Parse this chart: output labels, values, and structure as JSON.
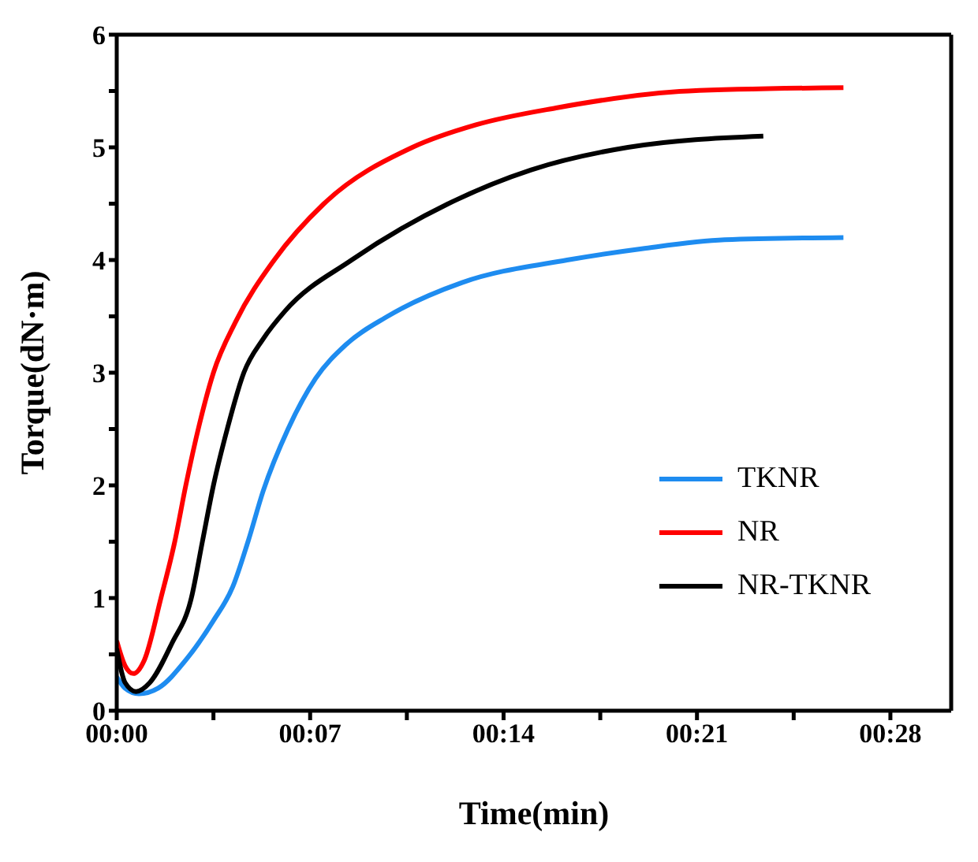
{
  "chart_data": {
    "type": "line",
    "xlabel": "Time(min)",
    "ylabel": "Torque(dN·m)",
    "xlim": [
      0,
      30.2
    ],
    "xticks": [
      {
        "value": 0,
        "label": "00:00"
      },
      {
        "value": 3.5,
        "label": null
      },
      {
        "value": 7,
        "label": "00:07"
      },
      {
        "value": 10.5,
        "label": null
      },
      {
        "value": 14,
        "label": "00:14"
      },
      {
        "value": 17.5,
        "label": null
      },
      {
        "value": 21,
        "label": "00:21"
      },
      {
        "value": 24.5,
        "label": null
      },
      {
        "value": 28,
        "label": "00:28"
      }
    ],
    "ylim": [
      0,
      6
    ],
    "yticks": [
      0,
      {
        "value": 0.5,
        "label": null
      },
      1,
      {
        "value": 1.5,
        "label": null
      },
      2,
      {
        "value": 2.5,
        "label": null
      },
      3,
      {
        "value": 3.5,
        "label": null
      },
      4,
      {
        "value": 4.5,
        "label": null
      },
      5,
      {
        "value": 5.5,
        "label": null
      },
      6
    ],
    "legend": "bottom right",
    "marker": "none",
    "line_style": "solid",
    "series": [
      {
        "name": "TKNR",
        "color": "#1e8cf0",
        "x": [
          0,
          0.3,
          0.8,
          1.5,
          2.5,
          3.5,
          4.2,
          4.75,
          5.3,
          6.2,
          7.2,
          8.3,
          9.8,
          12.5,
          16.3,
          19,
          22,
          26.3
        ],
        "values": [
          0.3,
          0.2,
          0.15,
          0.2,
          0.45,
          0.8,
          1.1,
          1.5,
          1.95,
          2.5,
          2.95,
          3.25,
          3.5,
          3.8,
          4.0,
          4.1,
          4.18,
          4.2
        ]
      },
      {
        "name": "NR",
        "color": "#ff0000",
        "x": [
          0,
          0.3,
          0.6,
          1.0,
          1.6,
          2.1,
          2.5,
          3.0,
          3.5,
          4.3,
          5.7,
          7.5,
          10.7,
          13,
          15.9,
          20.7,
          26.3
        ],
        "values": [
          0.62,
          0.4,
          0.33,
          0.45,
          1.0,
          1.5,
          2.0,
          2.55,
          3.0,
          3.45,
          4.0,
          4.5,
          5.0,
          5.2,
          5.35,
          5.5,
          5.53
        ]
      },
      {
        "name": "NR-TKNR",
        "color": "#000000",
        "x": [
          0,
          0.3,
          0.7,
          1.2,
          2.0,
          2.7,
          3.1,
          3.5,
          4.0,
          4.6,
          5.3,
          6.1,
          8.5,
          12.0,
          15,
          18.5,
          23.4
        ],
        "values": [
          0.55,
          0.25,
          0.17,
          0.25,
          0.6,
          1.0,
          1.5,
          2.0,
          2.5,
          3.0,
          3.3,
          3.55,
          4.0,
          4.5,
          4.8,
          5.0,
          5.1
        ]
      }
    ]
  }
}
